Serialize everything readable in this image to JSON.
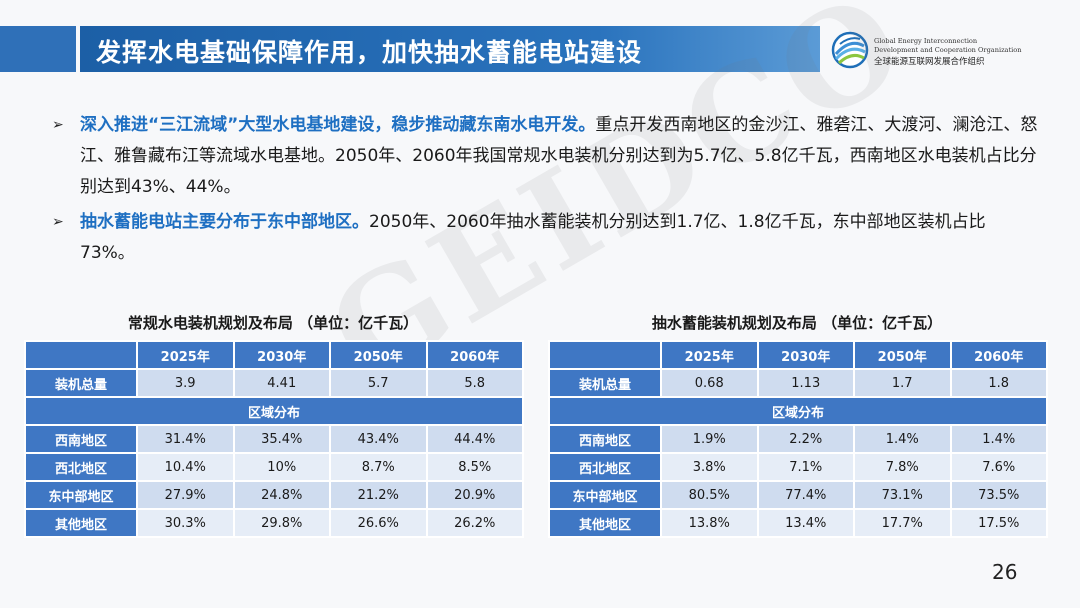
{
  "header": {
    "title": "发挥水电基础保障作用，加快抽水蓄能电站建设",
    "logo_en_line1": "Global Energy Interconnection",
    "logo_en_line2": "Development and Cooperation Organization",
    "logo_cn": "全球能源互联网发展合作组织",
    "logo_icon": "globe-icon"
  },
  "watermark": "GEIDCO",
  "bullets": [
    {
      "highlight": "深入推进“三江流域”大型水电基地建设，稳步推动藏东南水电开发。",
      "text": "重点开发西南地区的金沙江、雅砻江、大渡河、澜沧江、怒江、雅鲁藏布江等流域水电基地。2050年、2060年我国常规水电装机分别达到为5.7亿、5.8亿千瓦，西南地区水电装机占比分别达到43%、44%。"
    },
    {
      "highlight": "抽水蓄能电站主要分布于东中部地区。",
      "text": "2050年、2060年抽水蓄能装机分别达到1.7亿、1.8亿千瓦，东中部地区装机占比73%。"
    }
  ],
  "table_hydro": {
    "title": "常规水电装机规划及布局 （单位：亿千瓦）",
    "years": [
      "2025年",
      "2030年",
      "2050年",
      "2060年"
    ],
    "total_label": "装机总量",
    "total": [
      "3.9",
      "4.41",
      "5.7",
      "5.8"
    ],
    "region_header": "区域分布",
    "rows": [
      {
        "label": "西南地区",
        "values": [
          "31.4%",
          "35.4%",
          "43.4%",
          "44.4%"
        ]
      },
      {
        "label": "西北地区",
        "values": [
          "10.4%",
          "10%",
          "8.7%",
          "8.5%"
        ]
      },
      {
        "label": "东中部地区",
        "values": [
          "27.9%",
          "24.8%",
          "21.2%",
          "20.9%"
        ]
      },
      {
        "label": "其他地区",
        "values": [
          "30.3%",
          "29.8%",
          "26.6%",
          "26.2%"
        ]
      }
    ]
  },
  "table_pumped": {
    "title": "抽水蓄能装机规划及布局 （单位：亿千瓦）",
    "years": [
      "2025年",
      "2030年",
      "2050年",
      "2060年"
    ],
    "total_label": "装机总量",
    "total": [
      "0.68",
      "1.13",
      "1.7",
      "1.8"
    ],
    "region_header": "区域分布",
    "rows": [
      {
        "label": "西南地区",
        "values": [
          "1.9%",
          "2.2%",
          "1.4%",
          "1.4%"
        ]
      },
      {
        "label": "西北地区",
        "values": [
          "3.8%",
          "7.1%",
          "7.8%",
          "7.6%"
        ]
      },
      {
        "label": "东中部地区",
        "values": [
          "80.5%",
          "77.4%",
          "73.1%",
          "73.5%"
        ]
      },
      {
        "label": "其他地区",
        "values": [
          "13.8%",
          "13.4%",
          "17.7%",
          "17.5%"
        ]
      }
    ]
  },
  "page_number": "26"
}
